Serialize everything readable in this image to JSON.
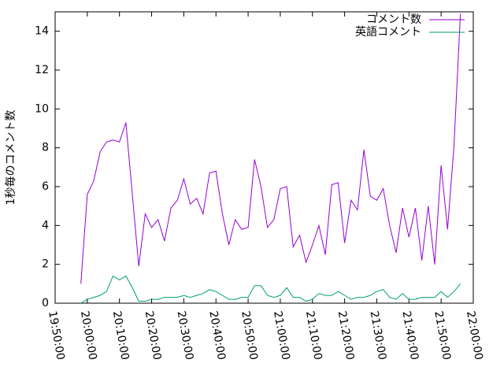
{
  "chart_data": {
    "type": "line",
    "ylabel": "1秒毎のコメント数",
    "x": [
      "19:58:00",
      "20:00:00",
      "20:02:00",
      "20:04:00",
      "20:06:00",
      "20:08:00",
      "20:10:00",
      "20:12:00",
      "20:14:00",
      "20:16:00",
      "20:18:00",
      "20:20:00",
      "20:22:00",
      "20:24:00",
      "20:26:00",
      "20:28:00",
      "20:30:00",
      "20:32:00",
      "20:34:00",
      "20:36:00",
      "20:38:00",
      "20:40:00",
      "20:42:00",
      "20:44:00",
      "20:46:00",
      "20:48:00",
      "20:50:00",
      "20:52:00",
      "20:54:00",
      "20:56:00",
      "20:58:00",
      "21:00:00",
      "21:02:00",
      "21:04:00",
      "21:06:00",
      "21:08:00",
      "21:10:00",
      "21:12:00",
      "21:14:00",
      "21:16:00",
      "21:18:00",
      "21:20:00",
      "21:22:00",
      "21:24:00",
      "21:26:00",
      "21:28:00",
      "21:30:00",
      "21:32:00",
      "21:34:00",
      "21:36:00",
      "21:38:00",
      "21:40:00",
      "21:42:00",
      "21:44:00",
      "21:46:00",
      "21:48:00",
      "21:50:00",
      "21:52:00",
      "21:54:00",
      "21:56:00"
    ],
    "series": [
      {
        "name": "コメント数",
        "color": "#9400d3",
        "values": [
          1.0,
          5.6,
          6.3,
          7.8,
          8.3,
          8.4,
          8.3,
          9.3,
          5.6,
          1.9,
          4.6,
          3.9,
          4.3,
          3.2,
          4.9,
          5.3,
          6.4,
          5.1,
          5.4,
          4.6,
          6.7,
          6.8,
          4.6,
          3.0,
          4.3,
          3.8,
          3.9,
          7.4,
          6.0,
          3.9,
          4.3,
          5.9,
          6.0,
          2.9,
          3.5,
          2.1,
          3.0,
          4.0,
          2.5,
          6.1,
          6.2,
          3.1,
          5.3,
          4.8,
          7.9,
          5.5,
          5.3,
          5.9,
          4.0,
          2.6,
          4.9,
          3.4,
          4.9,
          2.2,
          5.0,
          2.0,
          7.1,
          3.8,
          8.1,
          14.9
        ]
      },
      {
        "name": "英語コメント",
        "color": "#009e73",
        "values": [
          0.0,
          0.2,
          0.3,
          0.4,
          0.6,
          1.4,
          1.2,
          1.4,
          0.8,
          0.1,
          0.1,
          0.2,
          0.2,
          0.3,
          0.3,
          0.3,
          0.4,
          0.3,
          0.4,
          0.5,
          0.7,
          0.6,
          0.4,
          0.2,
          0.2,
          0.3,
          0.3,
          0.9,
          0.9,
          0.4,
          0.3,
          0.4,
          0.8,
          0.3,
          0.3,
          0.1,
          0.2,
          0.5,
          0.4,
          0.4,
          0.6,
          0.4,
          0.2,
          0.3,
          0.3,
          0.4,
          0.6,
          0.7,
          0.3,
          0.2,
          0.5,
          0.2,
          0.2,
          0.3,
          0.3,
          0.3,
          0.6,
          0.3,
          0.6,
          1.0
        ]
      }
    ],
    "xlim": [
      "19:50:00",
      "22:00:00"
    ],
    "xticks": [
      "19:50:00",
      "20:00:00",
      "20:10:00",
      "20:20:00",
      "20:30:00",
      "20:40:00",
      "20:50:00",
      "21:00:00",
      "21:10:00",
      "21:20:00",
      "21:30:00",
      "21:40:00",
      "21:50:00",
      "22:00:00"
    ],
    "ylim": [
      0,
      15
    ],
    "yticks": [
      0,
      2,
      4,
      6,
      8,
      10,
      12,
      14
    ],
    "legend": "top-right"
  }
}
